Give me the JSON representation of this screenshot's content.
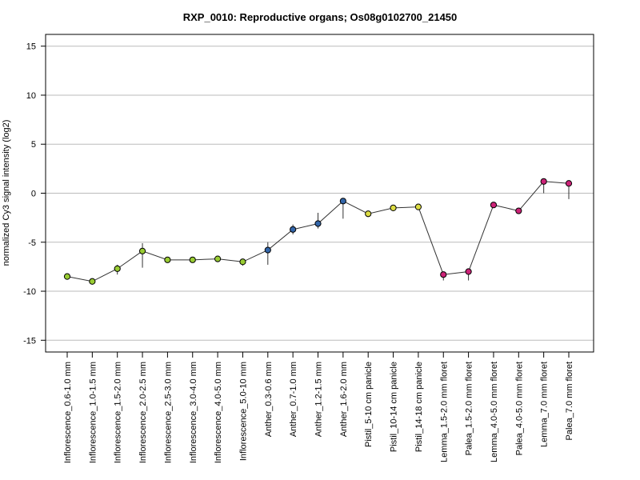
{
  "chart_data": {
    "type": "line",
    "title": "RXP_0010: Reproductive organs; Os08g0102700_21450",
    "ylabel": "normalized Cy3 signal intensity (log2)",
    "xlabel": "",
    "ylim": [
      -16.2,
      16.2
    ],
    "yticks": [
      -15,
      -10,
      -5,
      0,
      5,
      10,
      15
    ],
    "grid": true,
    "categories": [
      "Inflorescence_0.6-1.0 mm",
      "Inflorescence_1.0-1.5 mm",
      "Inflorescence_1.5-2.0 mm",
      "Inflorescence_2.0-2.5 mm",
      "Inflorescence_2.5-3.0 mm",
      "Inflorescence_3.0-4.0 mm",
      "Inflorescence_4.0-5.0 mm",
      "Inflorescence_5.0-10 mm",
      "Anther_0.3-0.6 mm",
      "Anther_0.7-1.0 mm",
      "Anther_1.2-1.5 mm",
      "Anther_1.6-2.0 mm",
      "Pistil_5-10 cm panicle",
      "Pistil_10-14 cm panicle",
      "Pistil_14-18 cm panicle",
      "Lemma_1.5-2.0 mm floret",
      "Palea_1.5-2.0 mm floret",
      "Lemma_4.0-5.0 mm floret",
      "Palea_4.0-5.0 mm floret",
      "Lemma_7.0 mm floret",
      "Palea_7.0 mm floret"
    ],
    "values": [
      -8.5,
      -9.0,
      -7.7,
      -5.9,
      -6.8,
      -6.8,
      -6.7,
      -7.0,
      -5.8,
      -3.7,
      -3.1,
      -0.8,
      -2.1,
      -1.5,
      -1.4,
      -8.3,
      -8.0,
      -1.2,
      -1.8,
      1.2,
      1.0
    ],
    "error_low": [
      -8.5,
      -9.0,
      -8.3,
      -7.6,
      -7.1,
      -6.8,
      -6.7,
      -7.4,
      -7.3,
      -4.2,
      -3.6,
      -2.6,
      -2.1,
      -1.5,
      -1.4,
      -8.9,
      -8.9,
      -1.2,
      -1.8,
      0.0,
      -0.6
    ],
    "error_high": [
      -8.5,
      -9.0,
      -7.3,
      -5.1,
      -6.6,
      -6.8,
      -6.7,
      -6.7,
      -5.0,
      -3.2,
      -2.0,
      -0.6,
      -2.1,
      -1.5,
      -1.4,
      -8.1,
      -7.9,
      -1.2,
      -1.8,
      1.4,
      1.2
    ],
    "point_colors": [
      "#99cc33",
      "#99cc33",
      "#99cc33",
      "#99cc33",
      "#99cc33",
      "#99cc33",
      "#99cc33",
      "#99cc33",
      "#3366aa",
      "#3366aa",
      "#3366aa",
      "#3366aa",
      "#dddd44",
      "#dddd44",
      "#dddd44",
      "#cc2277",
      "#cc2277",
      "#cc2277",
      "#cc2277",
      "#cc2277",
      "#cc2277"
    ],
    "line_color": "#333333",
    "grid_color": "#bbbbbb"
  }
}
